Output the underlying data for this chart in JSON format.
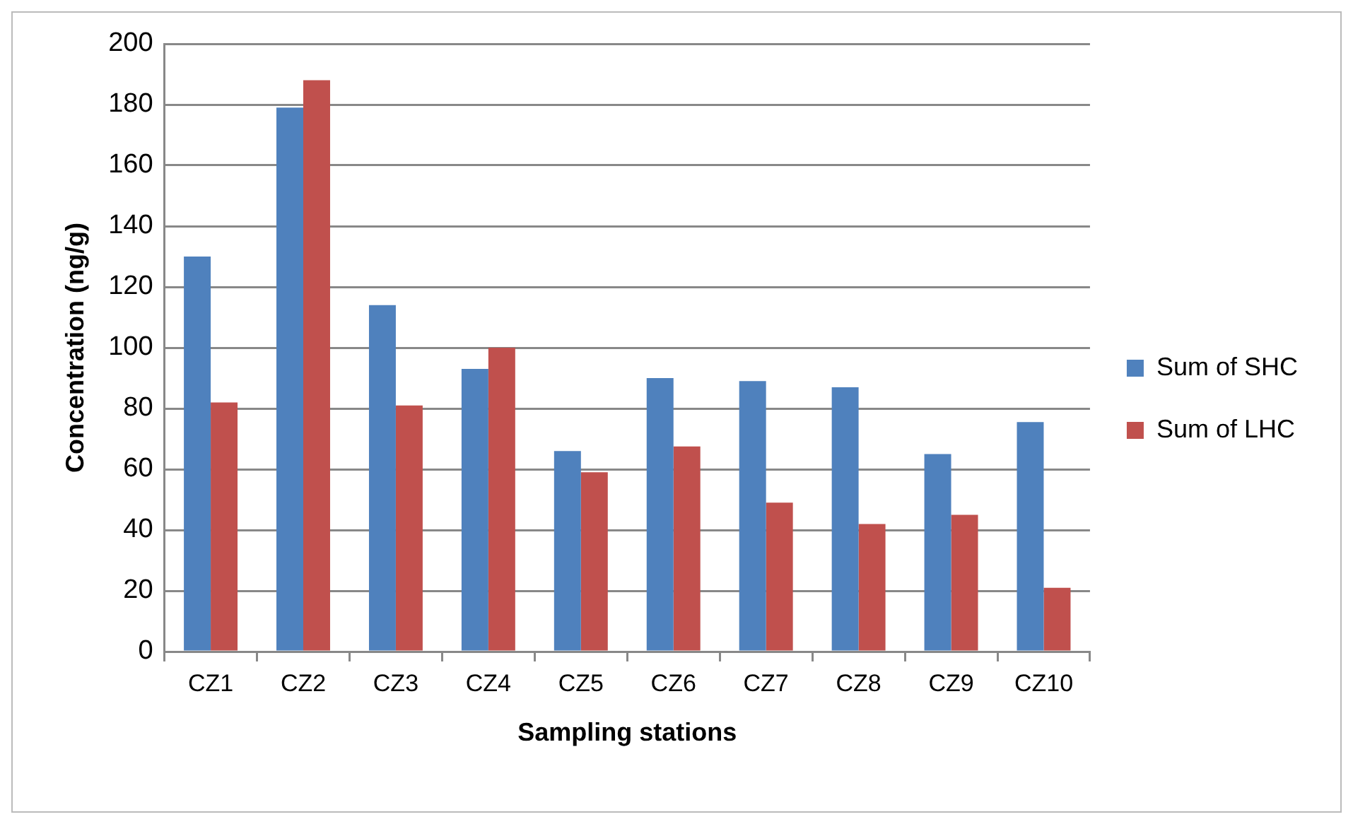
{
  "chart_data": {
    "type": "bar",
    "xlabel": "Sampling stations",
    "ylabel": "Concentration (ng/g)",
    "categories": [
      "CZ1",
      "CZ2",
      "CZ3",
      "CZ4",
      "CZ5",
      "CZ6",
      "CZ7",
      "CZ8",
      "CZ9",
      "CZ10"
    ],
    "series": [
      {
        "name": "Sum of SHC",
        "color": "#4f81bd",
        "values": [
          130,
          179,
          114,
          93,
          66,
          90,
          89,
          87,
          65,
          75.5
        ]
      },
      {
        "name": "Sum of LHC",
        "color": "#c0504d",
        "values": [
          82,
          188,
          81,
          100,
          59,
          67.5,
          49,
          42,
          45,
          21
        ]
      }
    ],
    "ylim": [
      0,
      200
    ],
    "yticks": [
      0,
      20,
      40,
      60,
      80,
      100,
      120,
      140,
      160,
      180,
      200
    ],
    "grid": "y",
    "legend": "right"
  }
}
